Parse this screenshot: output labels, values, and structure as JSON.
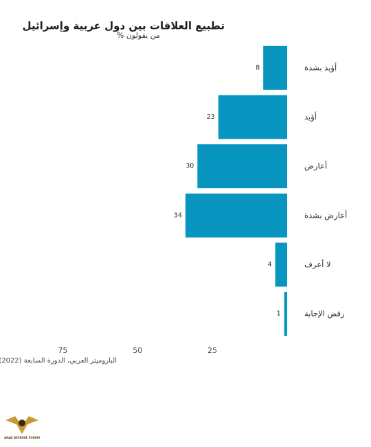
{
  "chart_data": {
    "type": "barh",
    "title": "تطبيع العلاقات بين دول عربية وإسرائيل",
    "subtitle": "% من يقولون",
    "source": "الباروميتر العربي، الدورة السابعة (2022)",
    "categories": [
      "أؤيد بشدة",
      "أؤيد",
      "أعارض",
      "أعارض بشدة",
      "لا أعرف",
      "رفض الإجابة"
    ],
    "values": [
      8,
      23,
      30,
      34,
      4,
      1
    ],
    "color": "#0896c0",
    "xlim": [
      0,
      90
    ],
    "xticks": [
      25,
      50,
      75
    ],
    "grid": false,
    "logo": "ARAB DEFENSE FORUM"
  }
}
